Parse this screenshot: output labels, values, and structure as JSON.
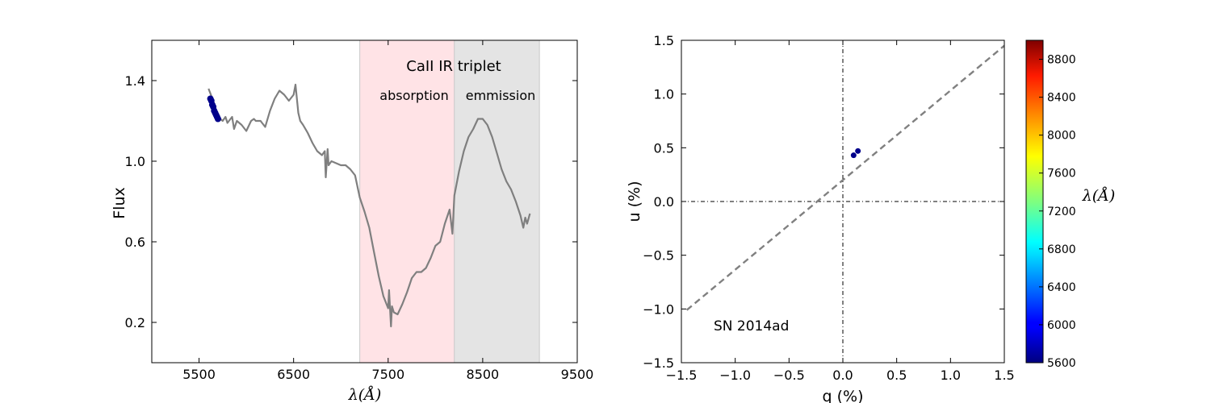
{
  "colors": {
    "spectrum": "#7f7f7f",
    "points": "#00008b",
    "absorption_band": "#ffe3e6",
    "emission_band": "#e4e4e4",
    "fit_line": "#808080"
  },
  "chart_data": [
    {
      "type": "line",
      "xlabel": "λ(Å)",
      "ylabel": "Flux",
      "xlim": [
        5000,
        9500
      ],
      "ylim": [
        0.0,
        1.6
      ],
      "xticks": [
        5500,
        6500,
        7500,
        8500,
        9500
      ],
      "yticks": [
        0.2,
        0.6,
        1.0,
        1.4
      ],
      "grid": false,
      "annotations": {
        "title": "CaII IR triplet",
        "absorption_label": "absorption",
        "emission_label": "emmission"
      },
      "bands": [
        {
          "name": "absorption",
          "x": [
            7200,
            8200
          ],
          "color": "#ffe3e6"
        },
        {
          "name": "emmission",
          "x": [
            8200,
            9100
          ],
          "color": "#e4e4e4"
        }
      ],
      "series": [
        {
          "x": [
            5600,
            5650,
            5700,
            5750,
            5780,
            5800,
            5850,
            5870,
            5900,
            5950,
            6000,
            6050,
            6080,
            6100,
            6150,
            6200,
            6250,
            6300,
            6350,
            6400,
            6450,
            6500,
            6520,
            6550,
            6570,
            6600,
            6650,
            6700,
            6750,
            6800,
            6830,
            6840,
            6860,
            6870,
            6900,
            6950,
            7000,
            7050,
            7100,
            7150,
            7200,
            7250,
            7300,
            7350,
            7400,
            7450,
            7500,
            7510,
            7530,
            7540,
            7560,
            7600,
            7650,
            7700,
            7750,
            7800,
            7850,
            7900,
            7950,
            8000,
            8050,
            8100,
            8150,
            8180,
            8200,
            8250,
            8300,
            8350,
            8400,
            8450,
            8500,
            8550,
            8600,
            8650,
            8700,
            8750,
            8800,
            8850,
            8900,
            8930,
            8950,
            8970,
            9000
          ],
          "y": [
            1.36,
            1.3,
            1.22,
            1.2,
            1.22,
            1.19,
            1.22,
            1.16,
            1.2,
            1.18,
            1.15,
            1.2,
            1.21,
            1.2,
            1.2,
            1.17,
            1.25,
            1.31,
            1.35,
            1.33,
            1.3,
            1.33,
            1.38,
            1.24,
            1.2,
            1.18,
            1.14,
            1.09,
            1.05,
            1.03,
            1.05,
            0.92,
            1.06,
            0.98,
            1.0,
            0.99,
            0.98,
            0.98,
            0.96,
            0.93,
            0.82,
            0.75,
            0.67,
            0.55,
            0.43,
            0.33,
            0.27,
            0.36,
            0.18,
            0.28,
            0.25,
            0.24,
            0.29,
            0.35,
            0.42,
            0.45,
            0.45,
            0.47,
            0.52,
            0.58,
            0.6,
            0.69,
            0.76,
            0.64,
            0.83,
            0.95,
            1.05,
            1.12,
            1.16,
            1.21,
            1.21,
            1.18,
            1.12,
            1.04,
            0.96,
            0.9,
            0.86,
            0.8,
            0.73,
            0.67,
            0.72,
            0.69,
            0.74
          ]
        },
        {
          "x": [
            5620,
            5630,
            5640,
            5650,
            5660,
            5670,
            5680,
            5690,
            5700
          ],
          "y": [
            1.31,
            1.3,
            1.28,
            1.27,
            1.25,
            1.24,
            1.23,
            1.22,
            1.21
          ]
        }
      ]
    },
    {
      "type": "scatter",
      "xlabel": "q (%)",
      "ylabel": "u (%)",
      "xlim": [
        -1.5,
        1.5
      ],
      "ylim": [
        -1.5,
        1.5
      ],
      "xticks": [
        "−1.5",
        "−1.0",
        "−0.5",
        "0.0",
        "0.5",
        "1.0",
        "1.5"
      ],
      "yticks": [
        "1.5",
        "1.0",
        "0.5",
        "0.0",
        "−0.5",
        "−1.0",
        "−1.5"
      ],
      "grid": false,
      "annotation": "SN 2014ad",
      "points": [
        {
          "q": 0.1,
          "u": 0.43
        },
        {
          "q": 0.14,
          "u": 0.47
        }
      ],
      "fit_line": {
        "x": [
          -1.45,
          1.5
        ],
        "y": [
          -1.01,
          1.45
        ]
      },
      "colorbar": {
        "label": "λ(Å)",
        "range": [
          5600,
          9000
        ],
        "ticks": [
          5600,
          6000,
          6400,
          6800,
          7200,
          7600,
          8000,
          8400,
          8800
        ]
      }
    }
  ]
}
